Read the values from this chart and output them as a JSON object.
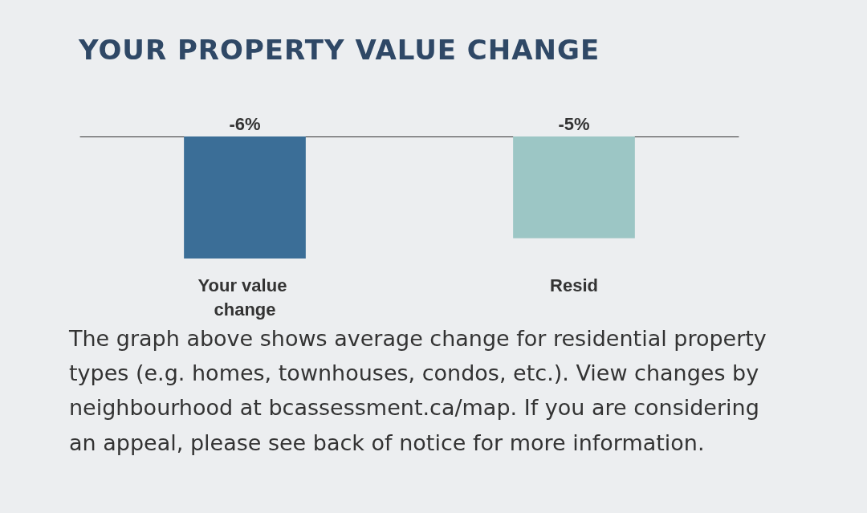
{
  "chart_data": {
    "type": "bar",
    "title": "YOUR PROPERTY VALUE CHANGE",
    "categories": [
      "Your value change",
      "Resid"
    ],
    "values": [
      -6,
      -5
    ],
    "colors": [
      "#3b6e97",
      "#9cc6c5"
    ],
    "value_labels": [
      "-6%",
      "-5%"
    ],
    "grid": false,
    "annotations": [
      "The graph above shows average change for residential property types (e.g. homes, townhouses, condos, etc.). View changes by neighbourhood at bcassessment.ca/map. If you are considering an appeal, please see back of notice for more information."
    ]
  }
}
